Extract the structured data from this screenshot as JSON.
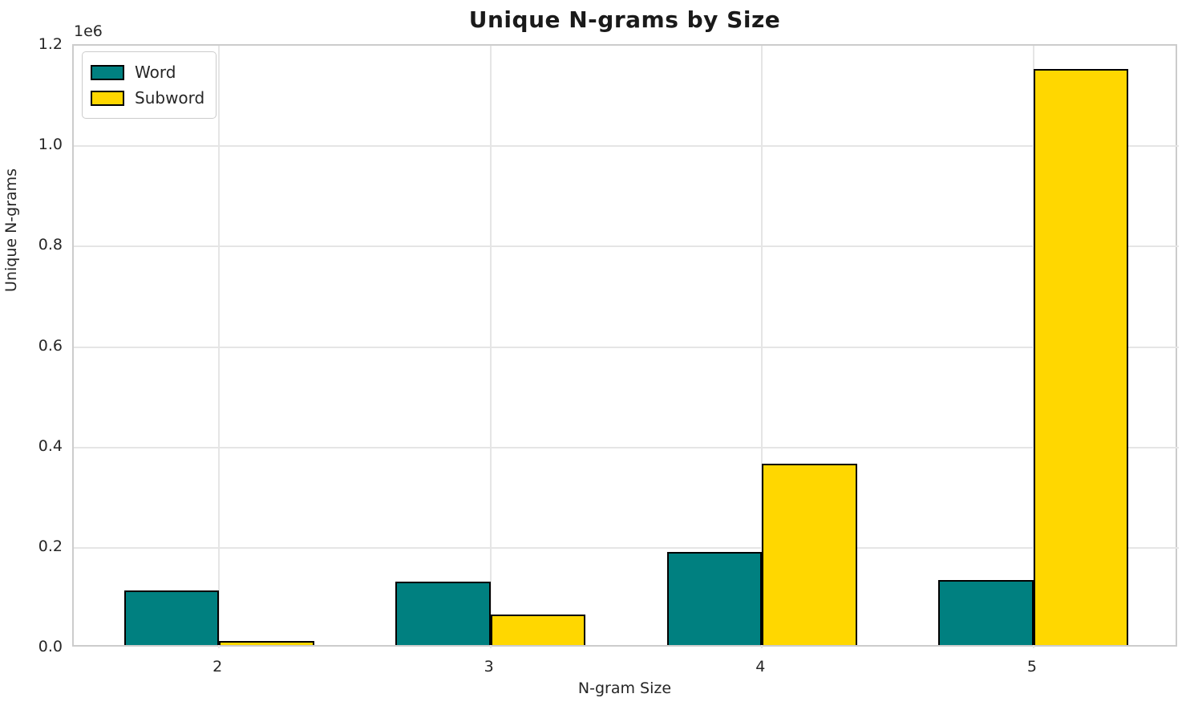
{
  "chart_data": {
    "type": "bar",
    "title": "Unique N-grams by Size",
    "xlabel": "N-gram Size",
    "ylabel": "Unique N-grams",
    "y_offset_text": "1e6",
    "categories": [
      "2",
      "3",
      "4",
      "5"
    ],
    "series": [
      {
        "name": "Word",
        "color": "#008080",
        "values": [
          109000,
          127000,
          185000,
          129000
        ]
      },
      {
        "name": "Subword",
        "color": "#FFD700",
        "values": [
          8000,
          61000,
          361000,
          1148000
        ]
      }
    ],
    "ylim": [
      0,
      1200000
    ],
    "ytick_labels": [
      "0.0",
      "0.2",
      "0.4",
      "0.6",
      "0.8",
      "1.0",
      "1.2"
    ],
    "ytick_values": [
      0,
      200000,
      400000,
      600000,
      800000,
      1000000,
      1200000
    ],
    "grid": true,
    "legend_position": "upper left",
    "bar_edge_color": "#000000",
    "bar_width_ratio": 0.35
  }
}
